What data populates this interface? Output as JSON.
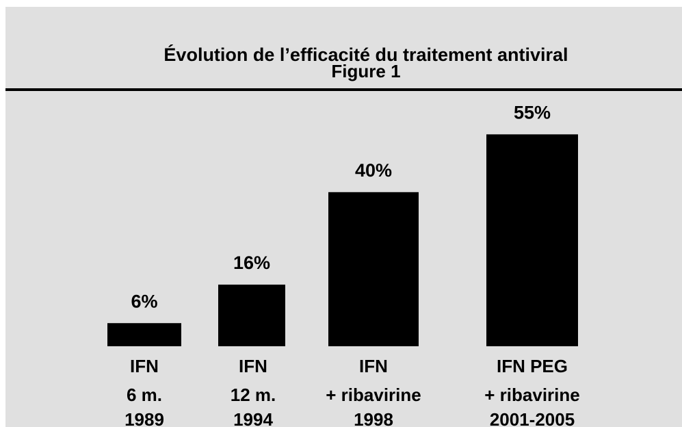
{
  "chart_data": {
    "type": "bar",
    "title": "Évolution de l’efficacité du traitement antiviral",
    "subtitle": "Figure 1",
    "categories": [
      [
        "IFN",
        "6 m.",
        "1989"
      ],
      [
        "IFN",
        "12 m.",
        "1994"
      ],
      [
        "IFN",
        "+ ribavirine",
        "1998"
      ],
      [
        "IFN PEG",
        "+  ribavirine",
        "2001-2005"
      ]
    ],
    "values": [
      6,
      16,
      40,
      55
    ],
    "value_labels": [
      "6%",
      "16%",
      "40%",
      "55%"
    ],
    "color": "#000000"
  }
}
